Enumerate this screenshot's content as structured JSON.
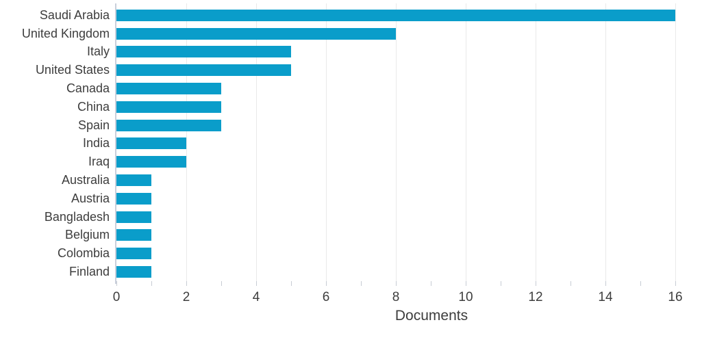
{
  "chart_data": {
    "type": "bar",
    "orientation": "horizontal",
    "title": "",
    "xlabel": "Documents",
    "ylabel": "",
    "categories": [
      "Saudi Arabia",
      "United Kingdom",
      "Italy",
      "United States",
      "Canada",
      "China",
      "Spain",
      "India",
      "Iraq",
      "Australia",
      "Austria",
      "Bangladesh",
      "Belgium",
      "Colombia",
      "Finland"
    ],
    "values": [
      16,
      8,
      5,
      5,
      3,
      3,
      3,
      2,
      2,
      1,
      1,
      1,
      1,
      1,
      1
    ],
    "xlim": [
      0,
      16
    ],
    "x_major_ticks": [
      0,
      2,
      4,
      6,
      8,
      10,
      12,
      14,
      16
    ],
    "x_minor_tick_step": 1,
    "grid": "vertical-major",
    "legend": "none",
    "colors": {
      "bar": "#0a9dca",
      "axis_line": "#c9cfdb",
      "gridline": "#e9e9e9",
      "tick": "#c7ccd4",
      "text": "#3d3d3d"
    }
  }
}
